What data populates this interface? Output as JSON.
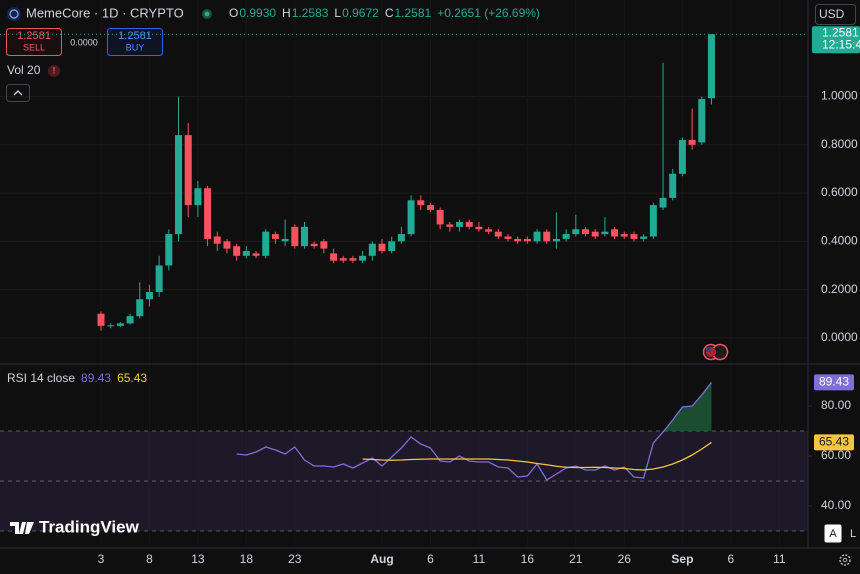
{
  "header": {
    "ohlc": [
      {
        "key": "O",
        "value": "0.9930"
      },
      {
        "key": "H",
        "value": "1.2583"
      },
      {
        "key": "L",
        "value": "0.9672"
      },
      {
        "key": "C",
        "value": "1.2581"
      }
    ],
    "change": "+0.2651 (+26.69%)",
    "sell_price": "1.2581",
    "sell": "SELL",
    "spread": "0.0000",
    "buy_price": "1.2581",
    "buy": "BUY",
    "volume": "Vol 20",
    "currency": "USD",
    "last_price": "1.2581",
    "countdown": "12:15:4",
    "brand": "TradingView",
    "scale_buttons": [
      "A",
      "L"
    ]
  },
  "chart_data": [
    {
      "type": "candlestick",
      "title": "MemeCore · 1D · CRYPTO",
      "categories": [
        "3",
        null,
        null,
        null,
        null,
        "8",
        null,
        null,
        null,
        null,
        "13",
        null,
        null,
        null,
        null,
        "18",
        null,
        null,
        null,
        null,
        "23",
        null,
        null,
        null,
        null,
        null,
        null,
        null,
        null,
        "Aug",
        null,
        null,
        null,
        null,
        "6",
        null,
        null,
        null,
        null,
        "11",
        null,
        null,
        null,
        null,
        "16",
        null,
        null,
        null,
        null,
        "21",
        null,
        null,
        null,
        null,
        "26",
        null,
        null,
        null,
        null,
        null,
        "Sep",
        null,
        null,
        null,
        null,
        "6",
        null,
        null,
        null,
        null,
        "11",
        null,
        null,
        null
      ],
      "series": {
        "open": [
          0.1,
          0.048,
          0.05,
          0.06,
          0.09,
          0.16,
          0.19,
          0.3,
          0.43,
          0.84,
          0.55,
          0.62,
          0.42,
          0.4,
          0.38,
          0.34,
          0.35,
          0.34,
          0.43,
          0.4,
          0.46,
          0.38,
          0.39,
          0.4,
          0.35,
          0.33,
          0.33,
          0.32,
          0.34,
          0.39,
          0.36,
          0.4,
          0.43,
          0.57,
          0.55,
          0.53,
          0.47,
          0.46,
          0.48,
          0.46,
          0.45,
          0.44,
          0.42,
          0.41,
          0.41,
          0.4,
          0.44,
          0.4,
          0.41,
          0.43,
          0.45,
          0.44,
          0.43,
          0.45,
          0.43,
          0.43,
          0.41,
          0.42,
          0.54,
          0.58,
          0.68,
          0.82,
          0.81,
          0.993,
          null,
          null,
          null,
          null,
          null,
          null,
          null,
          null,
          null,
          null
        ],
        "high": [
          0.11,
          0.06,
          0.065,
          0.1,
          0.23,
          0.22,
          0.34,
          0.45,
          1.0,
          0.89,
          0.65,
          0.63,
          0.44,
          0.41,
          0.39,
          0.38,
          0.36,
          0.45,
          0.44,
          0.49,
          0.47,
          0.48,
          0.4,
          0.41,
          0.37,
          0.34,
          0.34,
          0.36,
          0.4,
          0.41,
          0.42,
          0.46,
          0.59,
          0.59,
          0.56,
          0.54,
          0.48,
          0.49,
          0.49,
          0.48,
          0.46,
          0.45,
          0.43,
          0.42,
          0.42,
          0.45,
          0.45,
          0.52,
          0.45,
          0.51,
          0.46,
          0.45,
          0.5,
          0.46,
          0.44,
          0.44,
          0.43,
          0.56,
          1.14,
          0.7,
          0.83,
          0.95,
          1.0,
          1.2583,
          null,
          null,
          null,
          null,
          null,
          null,
          null,
          null,
          null,
          null
        ],
        "low": [
          0.03,
          0.04,
          0.045,
          0.055,
          0.08,
          0.13,
          0.17,
          0.28,
          0.4,
          0.5,
          0.5,
          0.38,
          0.36,
          0.35,
          0.32,
          0.33,
          0.33,
          0.33,
          0.39,
          0.38,
          0.37,
          0.37,
          0.37,
          0.35,
          0.31,
          0.31,
          0.31,
          0.31,
          0.32,
          0.35,
          0.35,
          0.39,
          0.42,
          0.53,
          0.52,
          0.45,
          0.44,
          0.44,
          0.45,
          0.44,
          0.43,
          0.41,
          0.4,
          0.39,
          0.39,
          0.39,
          0.39,
          0.37,
          0.4,
          0.42,
          0.42,
          0.41,
          0.42,
          0.41,
          0.41,
          0.4,
          0.4,
          0.41,
          0.53,
          0.57,
          0.67,
          0.78,
          0.8,
          0.9672,
          null,
          null,
          null,
          null,
          null,
          null,
          null,
          null,
          null,
          null
        ],
        "close": [
          0.05,
          0.052,
          0.06,
          0.09,
          0.16,
          0.19,
          0.3,
          0.43,
          0.84,
          0.55,
          0.62,
          0.41,
          0.39,
          0.37,
          0.34,
          0.36,
          0.34,
          0.44,
          0.41,
          0.41,
          0.38,
          0.46,
          0.38,
          0.37,
          0.32,
          0.32,
          0.32,
          0.34,
          0.39,
          0.36,
          0.4,
          0.43,
          0.57,
          0.55,
          0.53,
          0.47,
          0.46,
          0.48,
          0.46,
          0.45,
          0.44,
          0.42,
          0.41,
          0.4,
          0.4,
          0.44,
          0.4,
          0.41,
          0.43,
          0.45,
          0.43,
          0.42,
          0.44,
          0.42,
          0.42,
          0.41,
          0.42,
          0.55,
          0.58,
          0.68,
          0.82,
          0.8,
          0.99,
          1.2581,
          null,
          null,
          null,
          null,
          null,
          null,
          null,
          null,
          null,
          null
        ]
      },
      "up_color": "#22ab94",
      "down_color": "#f7525f",
      "ylim": [
        -0.1,
        1.4
      ],
      "yticks": [
        {
          "value": 0,
          "label": "0.0000"
        },
        {
          "value": 0.2,
          "label": "0.2000"
        },
        {
          "value": 0.4,
          "label": "0.4000"
        },
        {
          "value": 0.6,
          "label": "0.6000"
        },
        {
          "value": 0.8,
          "label": "0.8000"
        },
        {
          "value": 1.0,
          "label": "1.0000"
        }
      ],
      "grid": true
    },
    {
      "type": "line",
      "title": "RSI 14 close",
      "series": [
        {
          "color": "#7e6fd8",
          "values": [
            null,
            null,
            null,
            null,
            null,
            null,
            null,
            null,
            null,
            null,
            null,
            null,
            null,
            null,
            60.8,
            60.4,
            61.6,
            63.6,
            62.4,
            60.8,
            63.6,
            58.4,
            56,
            56,
            55.6,
            56.8,
            55.2,
            57.2,
            59.2,
            56,
            59.6,
            63.2,
            67.6,
            64.8,
            63.2,
            58,
            57.6,
            60,
            58,
            57.6,
            57.6,
            55.6,
            55.2,
            51.6,
            52,
            56.8,
            50.4,
            52.8,
            55.2,
            56,
            54.4,
            54.4,
            56,
            54.4,
            55.6,
            51.6,
            51.2,
            65.2,
            69.6,
            74.4,
            79.6,
            80,
            84.4,
            89.43,
            null,
            null,
            null,
            null,
            null,
            null,
            null,
            null,
            null,
            null
          ]
        },
        {
          "color": "#f5c542",
          "values": [
            null,
            null,
            null,
            null,
            null,
            null,
            null,
            null,
            null,
            null,
            null,
            null,
            null,
            null,
            null,
            null,
            null,
            null,
            null,
            null,
            null,
            null,
            null,
            null,
            null,
            null,
            null,
            58.8,
            58.6,
            58.4,
            58.3,
            58.4,
            58.6,
            58.7,
            58.8,
            58.8,
            58.8,
            58.8,
            58.8,
            58.8,
            58.8,
            58.6,
            58.4,
            58.0,
            57.6,
            57.0,
            56.5,
            55.9,
            55.5,
            55.4,
            55.4,
            55.5,
            55.4,
            55.2,
            55.0,
            54.6,
            54.4,
            54.8,
            55.6,
            56.8,
            58.4,
            60.4,
            62.8,
            65.43,
            null,
            null,
            null,
            null,
            null,
            null,
            null,
            null,
            null,
            null
          ]
        }
      ],
      "ylim": [
        24,
        96
      ],
      "yticks": [
        {
          "value": 40,
          "label": "40.00"
        },
        {
          "value": 60,
          "label": "60.00"
        },
        {
          "value": 80,
          "label": "80.00"
        }
      ],
      "bands": [
        30,
        50,
        70
      ],
      "band_color": "#2a2240",
      "overbought_fill": "#1f5c3a"
    }
  ]
}
